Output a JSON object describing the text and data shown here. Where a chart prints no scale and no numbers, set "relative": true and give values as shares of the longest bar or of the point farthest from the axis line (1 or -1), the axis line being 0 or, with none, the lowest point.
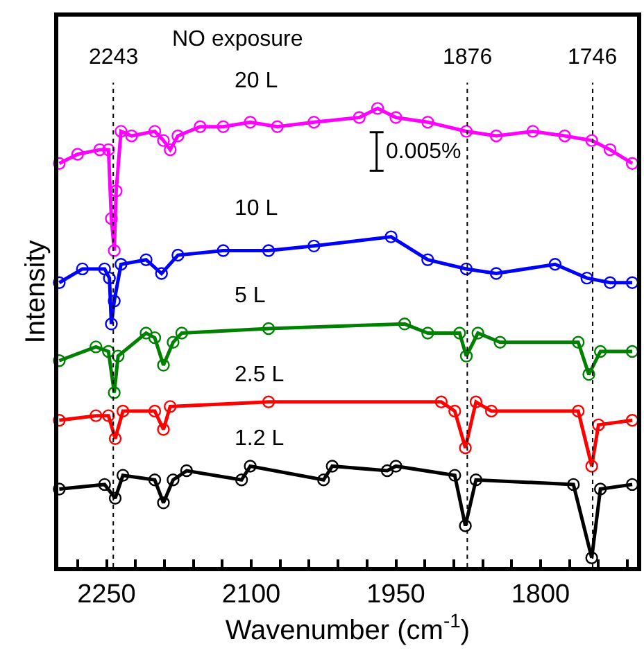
{
  "chart_data": {
    "type": "line",
    "relative": true,
    "xlabel": "Wavenumber (cm$^{-1}$)",
    "ylabel": "Intensity",
    "marker": "circle",
    "line_style": "solid",
    "legend": false,
    "xlim": [
      2300,
      1700
    ],
    "xticks": [
      {
        "value": 2280,
        "label": null
      },
      2250,
      {
        "value": 2220,
        "label": null
      },
      {
        "value": 2190,
        "label": null
      },
      {
        "value": 2160,
        "label": null
      },
      {
        "value": 2130,
        "label": null
      },
      2100,
      {
        "value": 2070,
        "label": null
      },
      {
        "value": 2040,
        "label": null
      },
      {
        "value": 2010,
        "label": null
      },
      {
        "value": 1980,
        "label": null
      },
      1950,
      {
        "value": 1920,
        "label": null
      },
      {
        "value": 1890,
        "label": null
      },
      {
        "value": 1860,
        "label": null
      },
      {
        "value": 1830,
        "label": null
      },
      1800,
      {
        "value": 1770,
        "label": null
      },
      {
        "value": 1740,
        "label": null
      },
      {
        "value": 1710,
        "label": null
      }
    ],
    "annotations": [
      "NO exposure",
      "0.005%"
    ],
    "ref_lines": [
      {
        "axis": "x",
        "value": 2243,
        "label": "2243",
        "color": "#000000",
        "line_style": "dotted"
      },
      {
        "axis": "x",
        "value": 1876,
        "label": "1876",
        "color": "#000000",
        "line_style": "dotted"
      },
      {
        "axis": "x",
        "value": 1746,
        "label": "1746",
        "color": "#000000",
        "line_style": "dotted"
      }
    ],
    "series": [
      {
        "name": "20 L",
        "color": "#ff00ff",
        "x": [
          2299,
          2280,
          2257,
          2248,
          2245,
          2242,
          2240,
          2235,
          2224,
          2200,
          2191,
          2184,
          2176,
          2153,
          2129,
          2101,
          2073,
          2035,
          1988,
          1969,
          1950,
          1917,
          1877,
          1846,
          1808,
          1775,
          1747,
          1728,
          1705
        ],
        "values": [
          0.88,
          0.9,
          0.91,
          0.91,
          0.76,
          0.69,
          0.82,
          0.95,
          0.94,
          0.95,
          0.93,
          0.91,
          0.94,
          0.96,
          0.96,
          0.97,
          0.96,
          0.97,
          0.98,
          1.0,
          0.98,
          0.97,
          0.95,
          0.94,
          0.95,
          0.94,
          0.93,
          0.91,
          0.88
        ]
      },
      {
        "name": "10 L",
        "color": "#0000ff",
        "x": [
          2299,
          2275,
          2252,
          2247,
          2245,
          2242,
          2235,
          2209,
          2193,
          2176,
          2129,
          2082,
          2035,
          1955,
          1917,
          1877,
          1846,
          1785,
          1752,
          1728,
          1705
        ],
        "values": [
          0.62,
          0.65,
          0.65,
          0.63,
          0.53,
          0.58,
          0.66,
          0.67,
          0.64,
          0.68,
          0.69,
          0.69,
          0.7,
          0.72,
          0.67,
          0.65,
          0.64,
          0.66,
          0.63,
          0.62,
          0.62
        ]
      },
      {
        "name": "5 L",
        "color": "#008000",
        "x": [
          2299,
          2261,
          2248,
          2242,
          2238,
          2209,
          2200,
          2191,
          2181,
          2172,
          2082,
          1941,
          1917,
          1884,
          1877,
          1865,
          1842,
          1761,
          1750,
          1738,
          1705
        ],
        "values": [
          0.45,
          0.48,
          0.47,
          0.38,
          0.46,
          0.51,
          0.5,
          0.44,
          0.49,
          0.51,
          0.52,
          0.53,
          0.51,
          0.51,
          0.46,
          0.51,
          0.49,
          0.49,
          0.42,
          0.47,
          0.47
        ]
      },
      {
        "name": "2.5 L",
        "color": "#ff0000",
        "x": [
          2299,
          2261,
          2248,
          2241,
          2233,
          2200,
          2191,
          2184,
          2082,
          1903,
          1889,
          1878,
          1867,
          1851,
          1761,
          1747,
          1740,
          1705
        ],
        "values": [
          0.32,
          0.33,
          0.33,
          0.28,
          0.34,
          0.34,
          0.3,
          0.35,
          0.36,
          0.36,
          0.34,
          0.26,
          0.36,
          0.34,
          0.34,
          0.22,
          0.31,
          0.32
        ]
      },
      {
        "name": "1.2 L",
        "color": "#000000",
        "x": [
          2299,
          2252,
          2241,
          2233,
          2200,
          2191,
          2181,
          2167,
          2110,
          2101,
          2025,
          2016,
          1959,
          1950,
          1889,
          1878,
          1867,
          1766,
          1747,
          1738,
          1705
        ],
        "values": [
          0.17,
          0.18,
          0.15,
          0.2,
          0.19,
          0.14,
          0.19,
          0.21,
          0.19,
          0.22,
          0.19,
          0.22,
          0.21,
          0.22,
          0.2,
          0.09,
          0.19,
          0.18,
          0.02,
          0.17,
          0.18
        ]
      }
    ]
  }
}
